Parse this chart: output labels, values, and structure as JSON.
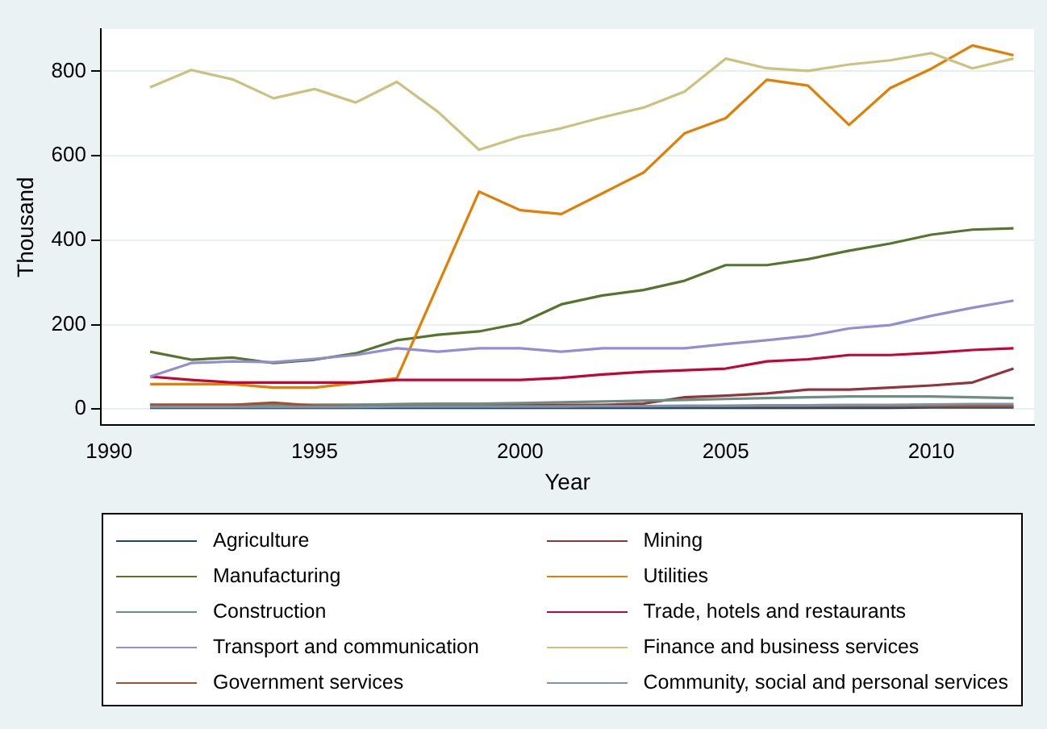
{
  "chart_data": {
    "type": "line",
    "xlabel": "Year",
    "ylabel": "Thousand",
    "x": [
      1991,
      1992,
      1993,
      1994,
      1995,
      1996,
      1997,
      1998,
      1999,
      2000,
      2001,
      2002,
      2003,
      2004,
      2005,
      2006,
      2007,
      2008,
      2009,
      2010,
      2011,
      2012
    ],
    "xlim": [
      1989.8,
      2012.5
    ],
    "xticks": [
      1990,
      1995,
      2000,
      2005,
      2010
    ],
    "ylim": [
      -38,
      900
    ],
    "yticks": [
      0,
      200,
      400,
      600,
      800
    ],
    "grid": "y",
    "legend": "bottom",
    "marker": "none",
    "line_style": "solid",
    "series": [
      {
        "name": "Agriculture",
        "color": "#1a476f",
        "values": [
          3,
          3,
          3,
          3,
          3,
          3,
          3,
          3,
          3,
          3,
          3,
          3,
          3,
          3,
          3,
          3,
          3,
          3,
          3,
          4,
          4,
          4
        ]
      },
      {
        "name": "Mining",
        "color": "#90353b",
        "values": [
          10,
          10,
          10,
          10,
          10,
          10,
          10,
          10,
          10,
          10,
          10,
          10,
          13,
          28,
          32,
          37,
          46,
          46,
          51,
          56,
          63,
          96
        ]
      },
      {
        "name": "Manufacturing",
        "color": "#55752f",
        "values": [
          136,
          117,
          122,
          109,
          117,
          132,
          163,
          176,
          184,
          203,
          248,
          269,
          282,
          304,
          341,
          341,
          355,
          375,
          392,
          413,
          425,
          428
        ]
      },
      {
        "name": "Utilities",
        "color": "#e37e00",
        "values": [
          59,
          59,
          59,
          51,
          51,
          62,
          73,
          294,
          515,
          471,
          462,
          511,
          560,
          653,
          689,
          780,
          766,
          673,
          760,
          806,
          861,
          838
        ]
      },
      {
        "name": "Construction",
        "color": "#6e8e84",
        "values": [
          8,
          8,
          8,
          9,
          9,
          10,
          12,
          13,
          13,
          14,
          16,
          18,
          20,
          22,
          24,
          26,
          28,
          30,
          30,
          30,
          28,
          26
        ]
      },
      {
        "name": "Trade, hotels and restaurants",
        "color": "#c10534",
        "values": [
          77,
          69,
          63,
          63,
          63,
          63,
          69,
          69,
          69,
          69,
          74,
          82,
          88,
          92,
          96,
          113,
          118,
          128,
          128,
          133,
          140,
          144
        ]
      },
      {
        "name": "Transport and communication",
        "color": "#938dd2",
        "values": [
          77,
          109,
          113,
          111,
          119,
          128,
          144,
          136,
          144,
          144,
          136,
          144,
          144,
          144,
          154,
          163,
          173,
          191,
          199,
          221,
          240,
          257
        ]
      },
      {
        "name": "Finance and business services",
        "color": "#cac27e",
        "values": [
          762,
          803,
          781,
          736,
          758,
          726,
          775,
          704,
          614,
          645,
          665,
          691,
          714,
          752,
          830,
          807,
          801,
          816,
          826,
          843,
          807,
          830
        ]
      },
      {
        "name": "Government services",
        "color": "#a0522d",
        "values": [
          10,
          10,
          10,
          15,
          8,
          6,
          7,
          7,
          7,
          7,
          7,
          7,
          7,
          7,
          7,
          7,
          7,
          7,
          7,
          7,
          7,
          7
        ]
      },
      {
        "name": "Community, social and personal services",
        "color": "#7b92a8",
        "values": [
          5,
          5,
          5,
          5,
          5,
          5,
          6,
          6,
          6,
          6,
          6,
          7,
          7,
          8,
          8,
          9,
          9,
          10,
          10,
          11,
          12,
          12
        ]
      }
    ]
  }
}
